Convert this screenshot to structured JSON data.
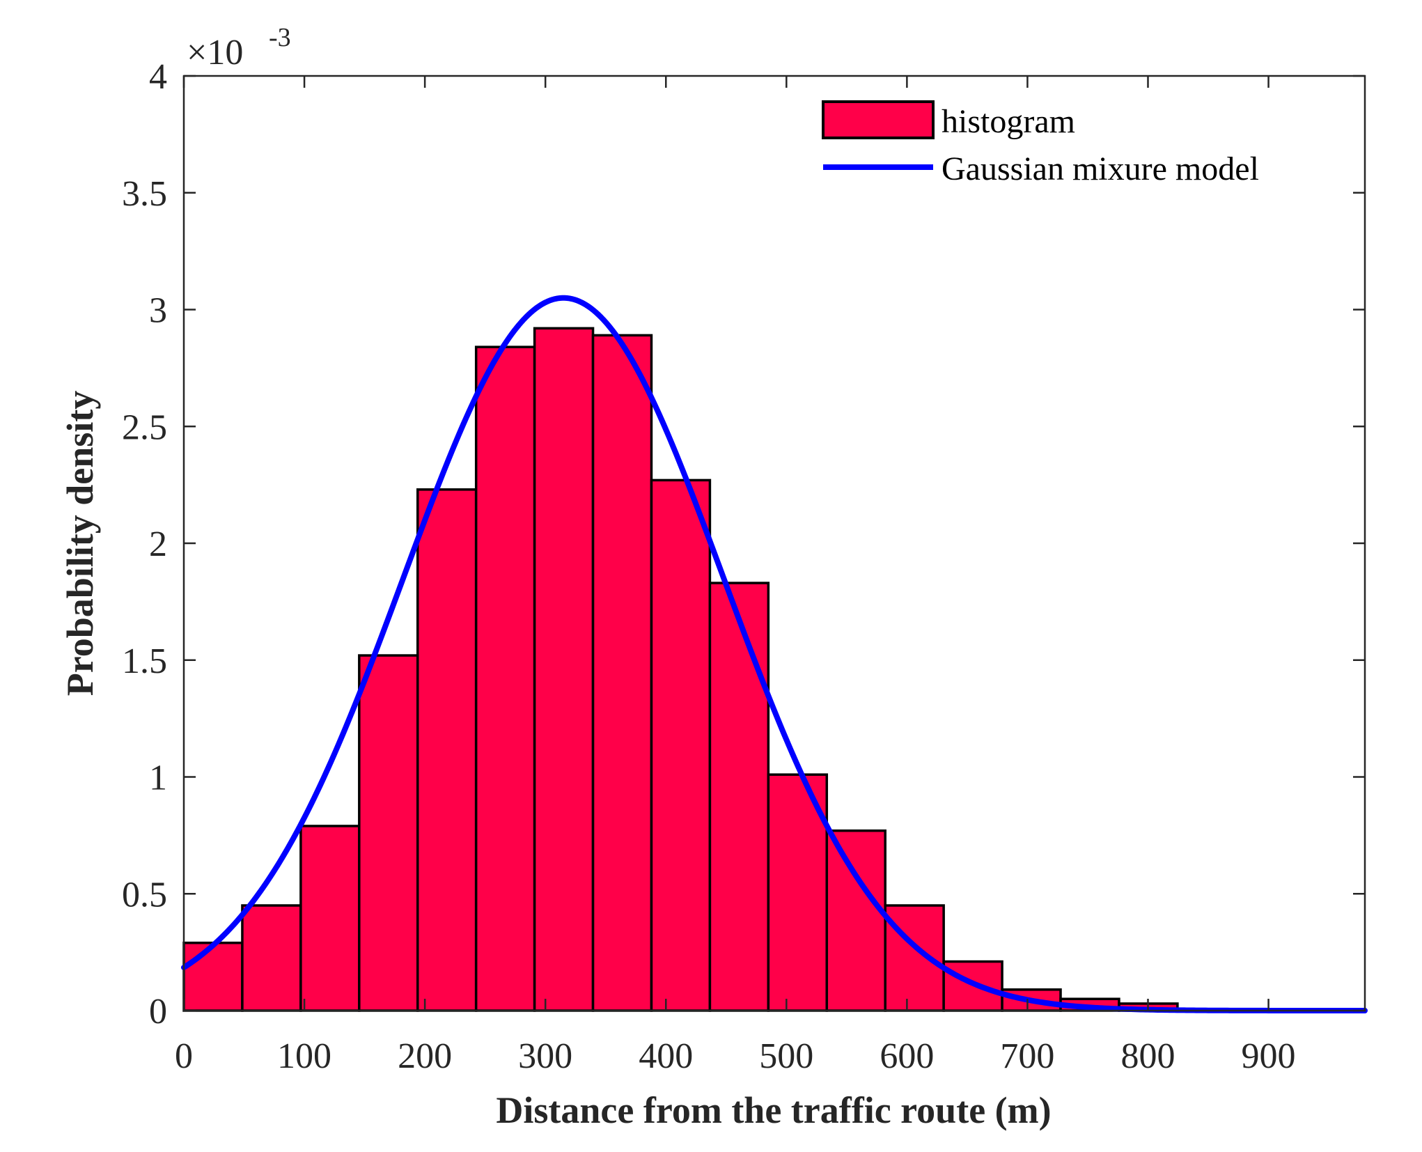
{
  "chart_data": {
    "type": "bar",
    "subtype": "histogram-with-density-curve",
    "xlabel": "Distance from the traffic route (m)",
    "ylabel": "Probability density",
    "xlim": [
      0,
      980
    ],
    "ylim": [
      0,
      0.004
    ],
    "y_exponent_label": "×10",
    "y_exponent_power": "-3",
    "xticks": [
      0,
      100,
      200,
      300,
      400,
      500,
      600,
      700,
      800,
      900
    ],
    "xtick_labels": [
      "0",
      "100",
      "200",
      "300",
      "400",
      "500",
      "600",
      "700",
      "800",
      "900"
    ],
    "yticks": [
      0,
      0.0005,
      0.001,
      0.0015,
      0.002,
      0.0025,
      0.003,
      0.0035,
      0.004
    ],
    "ytick_labels": [
      "0",
      "0.5",
      "1",
      "1.5",
      "2",
      "2.5",
      "3",
      "3.5",
      "4"
    ],
    "bin_width": 48.5,
    "bin_edges": [
      0,
      48.5,
      97,
      145.5,
      194,
      242.5,
      291,
      339.5,
      388,
      436.5,
      485,
      533.5,
      582,
      630.5,
      679,
      727.5,
      776,
      824.5
    ],
    "values": [
      0.00029,
      0.00045,
      0.00079,
      0.00152,
      0.00223,
      0.00284,
      0.00292,
      0.00289,
      0.00227,
      0.00183,
      0.00101,
      0.00077,
      0.00045,
      0.00021,
      9e-05,
      5e-05,
      3e-05
    ],
    "series": [
      {
        "name": "histogram",
        "kind": "bars",
        "color": "#ff0049",
        "edge_color": "#000000"
      },
      {
        "name": "Gaussian mixure model",
        "kind": "line",
        "color": "#0000ff",
        "model": "gaussian",
        "mean": 315,
        "sd": 133,
        "peak_density": 0.00305,
        "x_range": [
          0,
          980
        ]
      }
    ],
    "legend": {
      "position": "top-right",
      "entries": [
        "histogram",
        "Gaussian mixure model"
      ]
    },
    "grid": false
  }
}
